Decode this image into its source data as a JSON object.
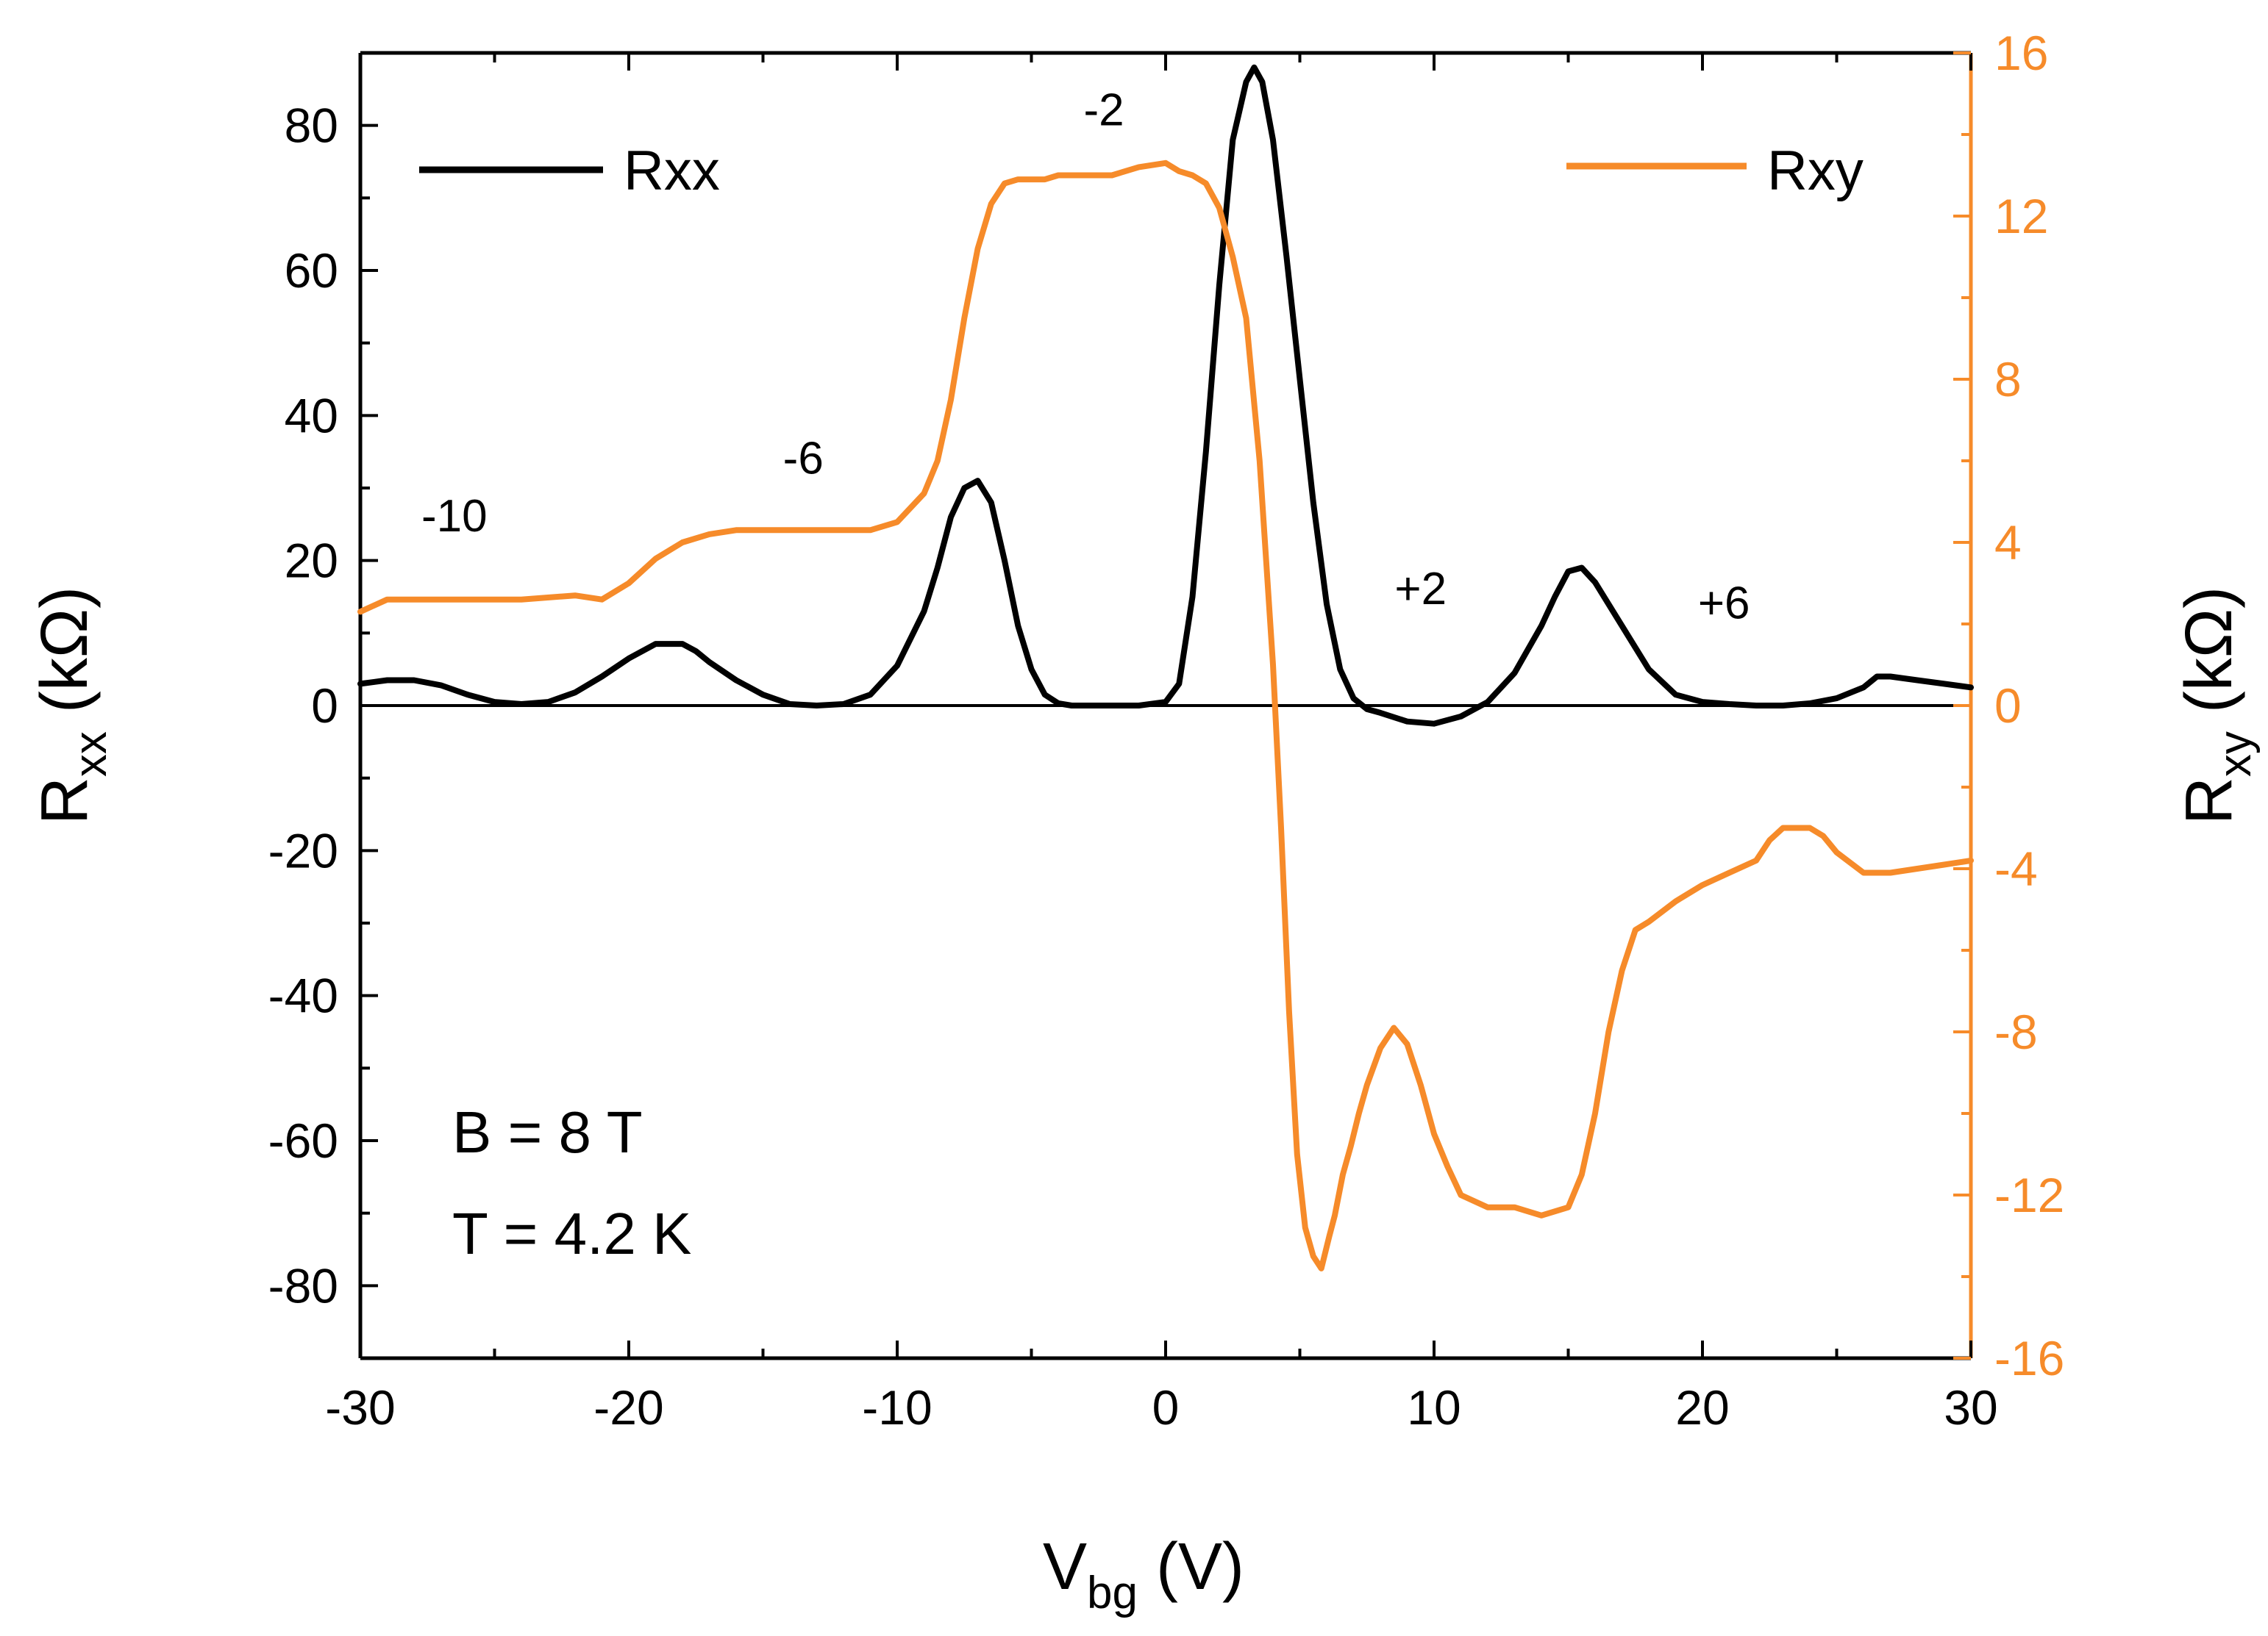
{
  "chart_data": {
    "type": "line",
    "title": "",
    "xlabel": {
      "main": "V",
      "sub": "bg",
      "unit": " (V)"
    },
    "ylabel_left": {
      "main": "R",
      "sub": "xx",
      "unit": " (kΩ)"
    },
    "ylabel_right": {
      "main": "R",
      "sub": "xy",
      "unit": " (kΩ)"
    },
    "xlim": [
      -30,
      30
    ],
    "ylim_left": [
      -90,
      90
    ],
    "ylim_right": [
      -16,
      16
    ],
    "x_ticks": [
      -30,
      -20,
      -10,
      0,
      10,
      20,
      30
    ],
    "x_tick_labels": [
      "-30",
      "-20",
      "-10",
      "0",
      "10",
      "20",
      "30"
    ],
    "y_left_ticks": [
      -80,
      -60,
      -40,
      -20,
      0,
      20,
      40,
      60,
      80
    ],
    "y_left_tick_labels": [
      "-80",
      "-60",
      "-40",
      "-20",
      "0",
      "20",
      "40",
      "60",
      "80"
    ],
    "y_right_ticks": [
      -16,
      -12,
      -8,
      -4,
      0,
      4,
      8,
      12,
      16
    ],
    "y_right_tick_labels": [
      "-16",
      "-12",
      "-8",
      "-4",
      "0",
      "4",
      "8",
      "12",
      "16"
    ],
    "colors": {
      "rxx": "#000000",
      "rxy": "#f68b2a",
      "axes": "#000000"
    },
    "legend": [
      {
        "name": "Rxx",
        "color": "#000000",
        "position": "top-left"
      },
      {
        "name": "Rxy",
        "color": "#f68b2a",
        "position": "top-right"
      }
    ],
    "annotations": [
      {
        "text": "-10",
        "x": -26.5,
        "y": 24
      },
      {
        "text": "-6",
        "x": -13.5,
        "y": 32
      },
      {
        "text": "-2",
        "x": -2.3,
        "y": 80
      },
      {
        "text": "+2",
        "x": 9.5,
        "y": 14
      },
      {
        "text": "+6",
        "x": 20.8,
        "y": 12
      }
    ],
    "conditions": [
      "B = 8 T",
      "T = 4.2 K"
    ],
    "series": [
      {
        "name": "Rxx",
        "axis": "left",
        "x": [
          -30,
          -29,
          -28,
          -27,
          -26,
          -25,
          -24,
          -23,
          -22,
          -21,
          -20,
          -19,
          -18,
          -17.5,
          -17,
          -16,
          -15,
          -14,
          -13,
          -12,
          -11,
          -10,
          -9,
          -8.5,
          -8,
          -7.5,
          -7,
          -6.5,
          -6,
          -5.5,
          -5,
          -4.5,
          -4,
          -3.5,
          -3,
          -2,
          -1,
          0,
          0.5,
          1,
          1.5,
          2,
          2.5,
          3,
          3.3,
          3.6,
          4,
          4.5,
          5,
          5.5,
          6,
          6.5,
          7,
          7.5,
          8,
          9,
          10,
          11,
          12,
          13,
          14,
          14.5,
          15,
          15.5,
          16,
          17,
          18,
          19,
          20,
          21,
          22,
          23,
          24,
          25,
          26,
          26.5,
          27,
          28,
          29,
          30
        ],
        "y": [
          3,
          3.5,
          3.5,
          2.8,
          1.5,
          0.5,
          0.2,
          0.5,
          1.8,
          4,
          6.5,
          8.5,
          8.5,
          7.5,
          6,
          3.5,
          1.5,
          0.2,
          0,
          0.2,
          1.5,
          5.5,
          13,
          19,
          26,
          30,
          31,
          28,
          20,
          11,
          5,
          1.5,
          0.3,
          0,
          0,
          0,
          0,
          0.5,
          3,
          15,
          35,
          58,
          78,
          86,
          88,
          86,
          78,
          62,
          45,
          28,
          14,
          5,
          1,
          -0.5,
          -1,
          -2.2,
          -2.5,
          -1.5,
          0.5,
          4.5,
          11,
          15,
          18.5,
          19,
          17,
          11,
          5,
          1.5,
          0.5,
          0.2,
          0,
          0,
          0.3,
          1,
          2.5,
          4,
          4,
          3.5,
          3,
          2.5
        ]
      },
      {
        "name": "Rxy",
        "axis": "right",
        "x": [
          -30,
          -29,
          -28,
          -26,
          -24,
          -22,
          -21,
          -20,
          -19,
          -18,
          -17,
          -16,
          -15,
          -13,
          -11,
          -10,
          -9,
          -8.5,
          -8,
          -7.5,
          -7,
          -6.5,
          -6,
          -5.5,
          -5,
          -4.5,
          -4,
          -3,
          -2,
          -1,
          0,
          0.5,
          1,
          1.5,
          2,
          2.5,
          3,
          3.5,
          4,
          4.3,
          4.6,
          4.9,
          5.2,
          5.5,
          5.8,
          6.1,
          6.3,
          6.6,
          6.9,
          7.2,
          7.5,
          8,
          8.5,
          9,
          9.5,
          10,
          10.5,
          11,
          12,
          13,
          14,
          15,
          15.5,
          16,
          16.5,
          17,
          17.5,
          18,
          19,
          20,
          21,
          22,
          22.5,
          23,
          24,
          24.5,
          25,
          26,
          27,
          28,
          29,
          30
        ],
        "y": [
          2.3,
          2.6,
          2.6,
          2.6,
          2.6,
          2.7,
          2.6,
          3.0,
          3.6,
          4.0,
          4.2,
          4.3,
          4.3,
          4.3,
          4.3,
          4.5,
          5.2,
          6.0,
          7.5,
          9.5,
          11.2,
          12.3,
          12.8,
          12.9,
          12.9,
          12.9,
          13.0,
          13.0,
          13.0,
          13.2,
          13.3,
          13.1,
          13.0,
          12.8,
          12.2,
          11.0,
          9.5,
          6.0,
          1.0,
          -3.0,
          -7.5,
          -11.0,
          -12.8,
          -13.5,
          -13.8,
          -13.0,
          -12.5,
          -11.5,
          -10.8,
          -10.0,
          -9.3,
          -8.4,
          -7.9,
          -8.3,
          -9.3,
          -10.5,
          -11.3,
          -12.0,
          -12.3,
          -12.3,
          -12.5,
          -12.3,
          -11.5,
          -10.0,
          -8.0,
          -6.5,
          -5.5,
          -5.3,
          -4.8,
          -4.4,
          -4.1,
          -3.8,
          -3.3,
          -3.0,
          -3.0,
          -3.2,
          -3.6,
          -4.1,
          -4.1,
          -4.0,
          -3.9,
          -3.8
        ]
      }
    ]
  }
}
